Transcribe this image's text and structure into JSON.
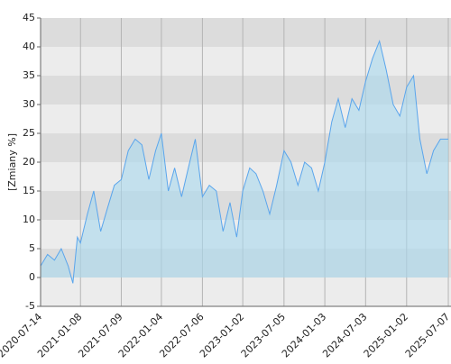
{
  "chart_data": {
    "type": "area",
    "ylabel": "[Zmiany %]",
    "x": [
      "2020-07-14",
      "2020-08-14",
      "2020-09-14",
      "2020-10-14",
      "2020-11-14",
      "2020-12-05",
      "2020-12-25",
      "2021-01-08",
      "2021-02-08",
      "2021-03-08",
      "2021-04-08",
      "2021-05-08",
      "2021-06-08",
      "2021-07-09",
      "2021-08-09",
      "2021-09-09",
      "2021-10-09",
      "2021-11-09",
      "2021-12-09",
      "2022-01-04",
      "2022-02-04",
      "2022-03-04",
      "2022-04-04",
      "2022-05-04",
      "2022-06-04",
      "2022-07-06",
      "2022-08-06",
      "2022-09-06",
      "2022-10-06",
      "2022-11-06",
      "2022-12-06",
      "2023-01-02",
      "2023-02-02",
      "2023-03-02",
      "2023-04-02",
      "2023-05-02",
      "2023-06-02",
      "2023-07-05",
      "2023-08-05",
      "2023-09-05",
      "2023-10-05",
      "2023-11-05",
      "2023-12-05",
      "2024-01-03",
      "2024-02-03",
      "2024-03-03",
      "2024-04-03",
      "2024-05-03",
      "2024-06-03",
      "2024-07-03",
      "2024-08-03",
      "2024-09-03",
      "2024-10-03",
      "2024-11-03",
      "2024-12-03",
      "2025-01-02",
      "2025-02-02",
      "2025-03-02",
      "2025-04-02",
      "2025-05-02",
      "2025-06-02",
      "2025-07-07"
    ],
    "series": [
      {
        "color": "#5aa5ec",
        "fill": "#a9d9ee",
        "values": [
          2,
          4,
          3,
          5,
          2,
          -1,
          7,
          6,
          11,
          15,
          8,
          12,
          16,
          17,
          22,
          24,
          23,
          17,
          22,
          25,
          15,
          19,
          14,
          19,
          24,
          14,
          16,
          15,
          8,
          13,
          7,
          15,
          19,
          18,
          15,
          11,
          16,
          22,
          20,
          16,
          20,
          19,
          15,
          20,
          27,
          31,
          26,
          31,
          29,
          34,
          38,
          41,
          36,
          30,
          28,
          33,
          35,
          24,
          18,
          22,
          24,
          24
        ]
      }
    ],
    "xlim": [
      "2020-07-14",
      "2025-07-19"
    ],
    "xticks": [
      "2020-07-14",
      "2021-01-08",
      "2021-07-09",
      "2022-01-04",
      "2022-07-06",
      "2023-01-02",
      "2023-07-05",
      "2024-01-03",
      "2024-07-03",
      "2025-01-02",
      "2025-07-07"
    ],
    "ylim": [
      -5,
      45
    ],
    "yticks": [
      -5,
      0,
      5,
      10,
      15,
      20,
      25,
      30,
      35,
      40,
      45
    ],
    "band_colors": [
      "#dcdcdc",
      "#ececec"
    ],
    "grid_color": "#b4b4b4"
  }
}
